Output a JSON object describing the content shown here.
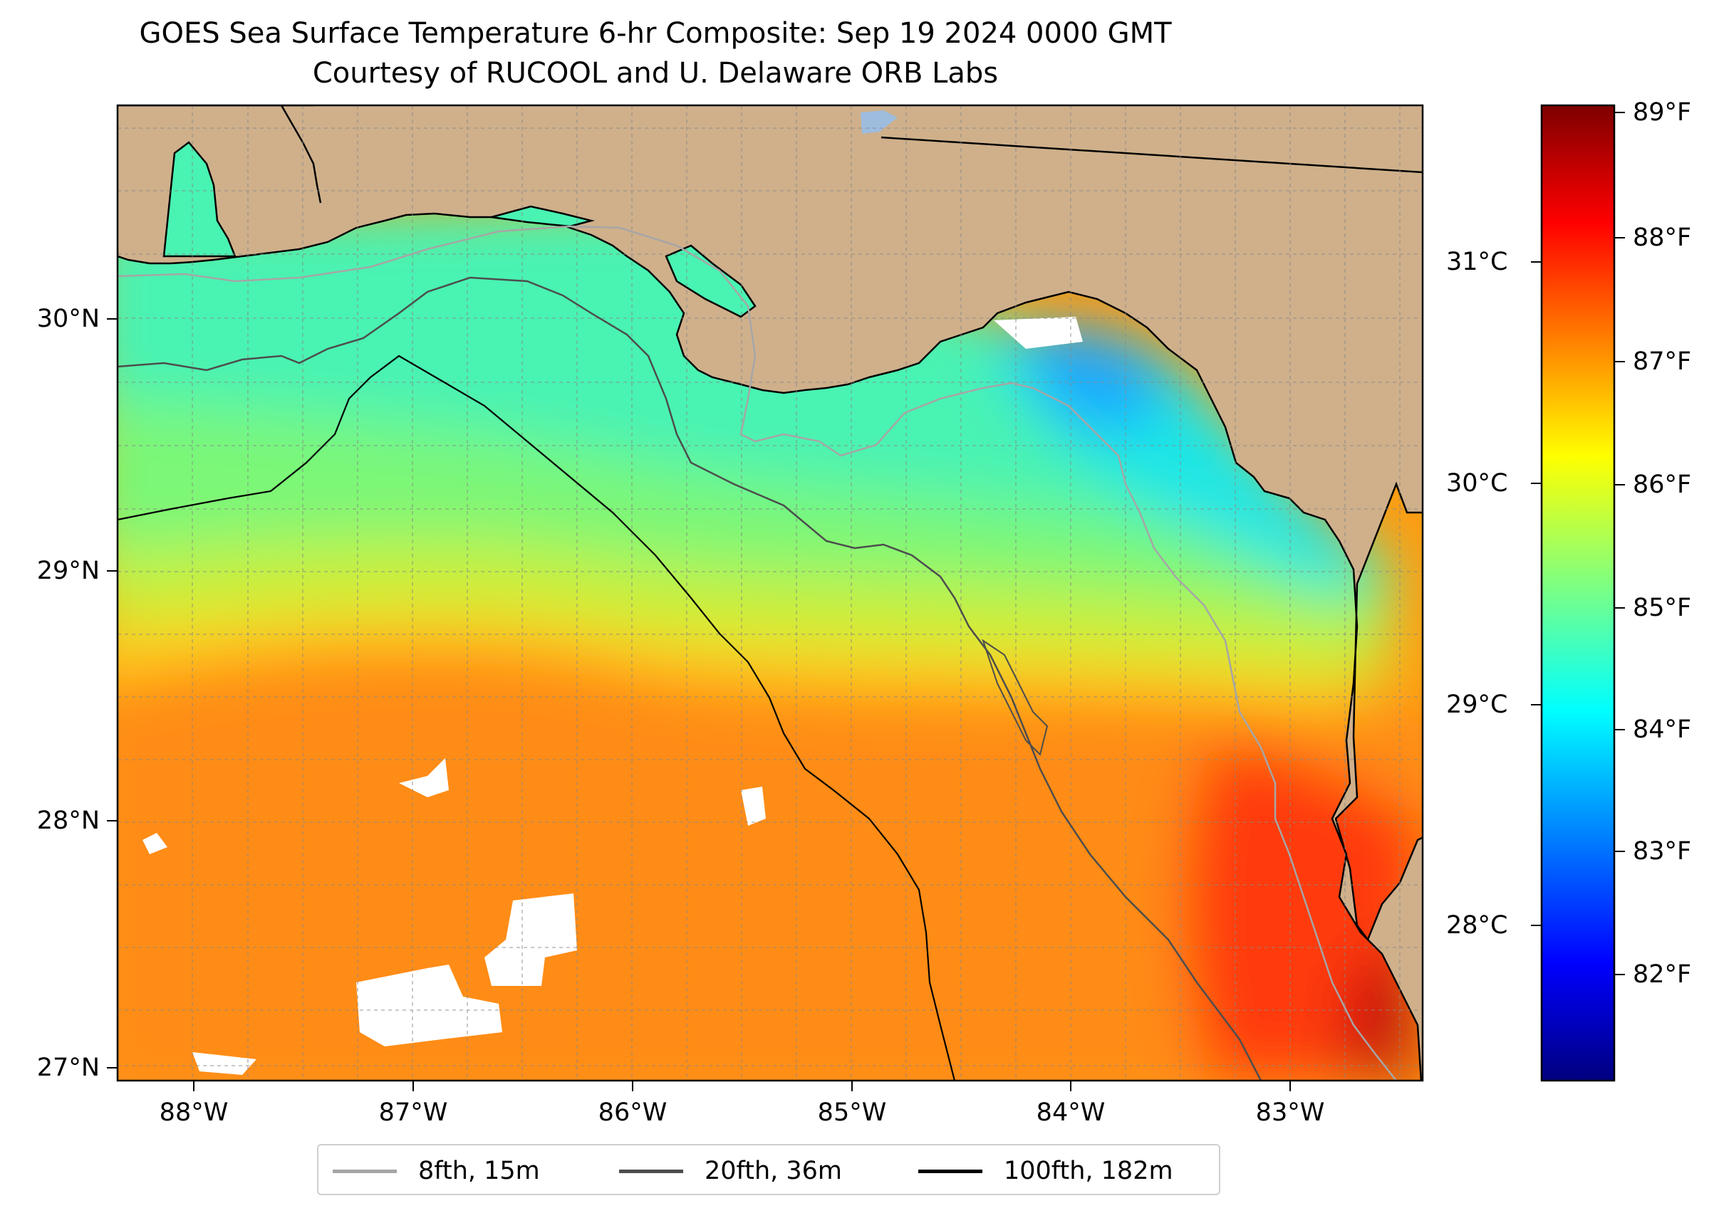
{
  "title": {
    "line1": "GOES Sea Surface Temperature 6-hr Composite: Sep 19 2024 0000 GMT",
    "line2": "Courtesy of RUCOOL and U. Delaware ORB Labs"
  },
  "map": {
    "region": "Northeastern Gulf of Mexico / Florida Big Bend",
    "lon_range": [
      -88.33,
      -82.4
    ],
    "lat_range": [
      26.93,
      30.83
    ],
    "land_color": "#cfb08b",
    "cloud_color": "#ffffff",
    "grid": true,
    "lat_ticks": [
      "30°N",
      "29°N",
      "28°N",
      "27°N"
    ],
    "lon_ticks": [
      "88°W",
      "87°W",
      "86°W",
      "85°W",
      "84°W",
      "83°W"
    ]
  },
  "colorbar": {
    "colormap": "jet",
    "f_ticks": [
      "89°F",
      "88°F",
      "87°F",
      "86°F",
      "85°F",
      "84°F",
      "83°F",
      "82°F"
    ],
    "c_ticks": [
      "31°C",
      "30°C",
      "29°C",
      "28°C"
    ],
    "range_f": [
      81.2,
      89.1
    ]
  },
  "legend": {
    "placement": "bottom-center",
    "items": [
      {
        "label": "8fth, 15m",
        "color": "#a6a6a6"
      },
      {
        "label": "20fth, 36m",
        "color": "#4d4d4d"
      },
      {
        "label": "100fth, 182m",
        "color": "#000000"
      }
    ]
  }
}
